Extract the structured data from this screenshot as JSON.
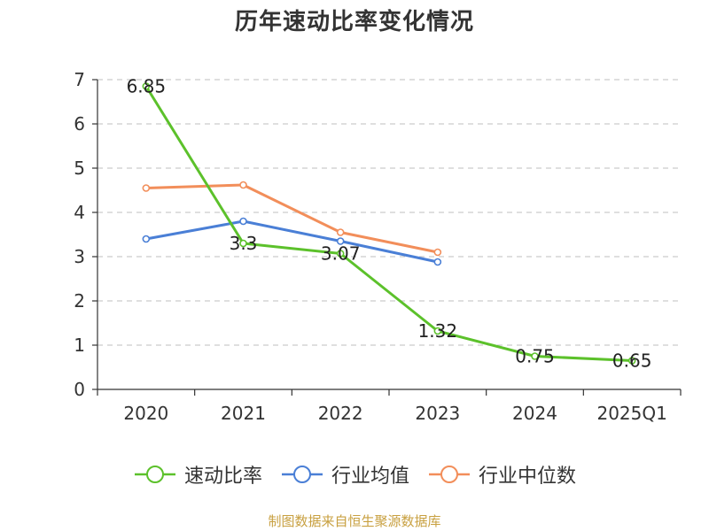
{
  "chart_data": {
    "type": "line",
    "title": "历年速动比率变化情况",
    "categories": [
      "2020",
      "2021",
      "2022",
      "2023",
      "2024",
      "2025Q1"
    ],
    "ylim": [
      0,
      7
    ],
    "yticks": [
      0,
      1,
      2,
      3,
      4,
      5,
      6,
      7
    ],
    "grid": true,
    "legend_position": "bottom",
    "series": [
      {
        "name": "速动比率",
        "color": "#5cc12b",
        "values": [
          6.85,
          3.3,
          3.07,
          1.32,
          0.75,
          0.65
        ],
        "labels": [
          "6.85",
          "3.3",
          "3.07",
          "1.32",
          "0.75",
          "0.65"
        ]
      },
      {
        "name": "行业均值",
        "color": "#4a7fd6",
        "values": [
          3.4,
          3.8,
          3.35,
          2.88,
          null,
          null
        ]
      },
      {
        "name": "行业中位数",
        "color": "#f28e5a",
        "values": [
          4.55,
          4.62,
          3.55,
          3.1,
          null,
          null
        ]
      }
    ]
  },
  "footer": {
    "source": "制图数据来自恒生聚源数据库"
  }
}
